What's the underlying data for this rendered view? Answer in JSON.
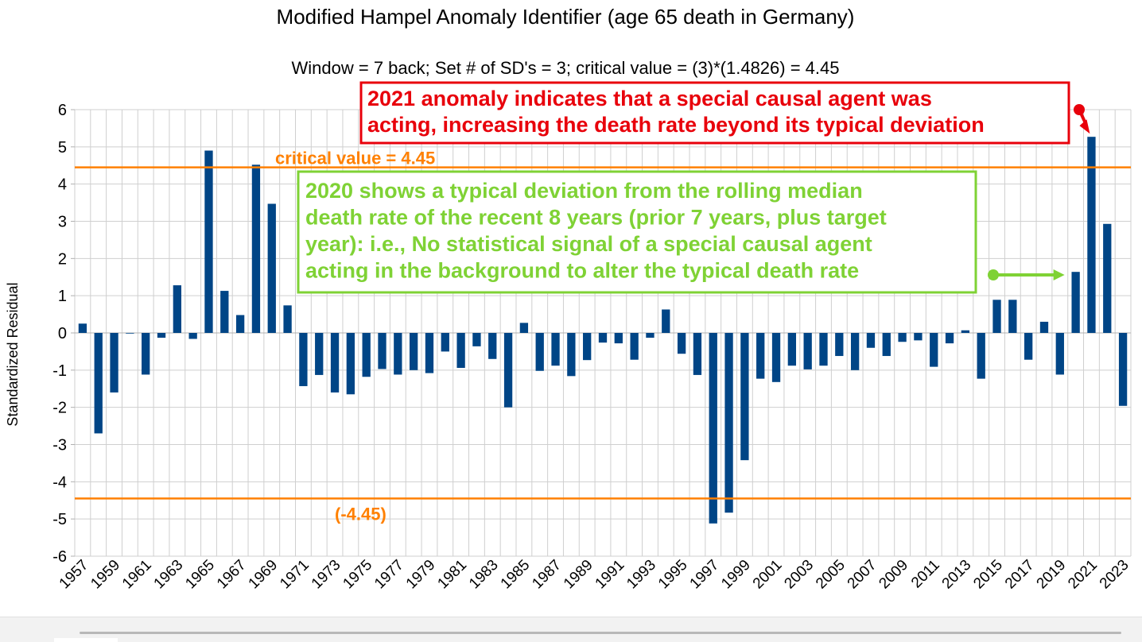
{
  "chart_data": {
    "type": "bar",
    "title": "Modified Hampel Anomaly Identifier (age 65 death in Germany)",
    "subtitle": "Window = 7 back; Set # of SD's = 3; critical value = (3)*(1.4826) = 4.45",
    "xlabel": "",
    "ylabel": "Standardized Residual",
    "ylim": [
      -6,
      6
    ],
    "yticks": [
      6,
      5,
      4,
      3,
      2,
      1,
      0,
      -1,
      -2,
      -3,
      -4,
      -5,
      -6
    ],
    "grid": true,
    "bar_color": "#004586",
    "categories": [
      "1957",
      "1958",
      "1959",
      "1960",
      "1961",
      "1962",
      "1963",
      "1964",
      "1965",
      "1966",
      "1967",
      "1968",
      "1969",
      "1970",
      "1971",
      "1972",
      "1973",
      "1974",
      "1975",
      "1976",
      "1977",
      "1978",
      "1979",
      "1980",
      "1981",
      "1982",
      "1983",
      "1984",
      "1985",
      "1986",
      "1987",
      "1988",
      "1989",
      "1990",
      "1991",
      "1992",
      "1993",
      "1994",
      "1995",
      "1996",
      "1997",
      "1998",
      "1999",
      "2000",
      "2001",
      "2002",
      "2003",
      "2004",
      "2005",
      "2006",
      "2007",
      "2008",
      "2009",
      "2010",
      "2011",
      "2012",
      "2013",
      "2014",
      "2015",
      "2016",
      "2017",
      "2018",
      "2019",
      "2020",
      "2021",
      "2022",
      "2023"
    ],
    "x_tick_labels": [
      "1957",
      "1959",
      "1961",
      "1963",
      "1965",
      "1967",
      "1969",
      "1971",
      "1973",
      "1975",
      "1977",
      "1979",
      "1981",
      "1983",
      "1985",
      "1987",
      "1989",
      "1991",
      "1993",
      "1995",
      "1997",
      "1999",
      "2001",
      "2003",
      "2005",
      "2007",
      "2009",
      "2011",
      "2013",
      "2015",
      "2017",
      "2019",
      "2021",
      "2023"
    ],
    "values": [
      0.25,
      -2.7,
      -1.6,
      0,
      -1.12,
      -0.13,
      1.28,
      -0.16,
      4.9,
      1.13,
      0.48,
      4.52,
      3.47,
      0.74,
      -1.43,
      -1.13,
      -1.6,
      -1.65,
      -1.18,
      -0.97,
      -1.12,
      -1.0,
      -1.08,
      -0.5,
      -0.94,
      -0.36,
      -0.7,
      -2.0,
      0.27,
      -1.02,
      -0.88,
      -1.16,
      -0.73,
      -0.26,
      -0.28,
      -0.72,
      -0.13,
      0.63,
      -0.56,
      -1.13,
      -5.12,
      -4.83,
      -3.42,
      -1.23,
      -1.32,
      -0.88,
      -0.98,
      -0.88,
      -0.62,
      -1.0,
      -0.4,
      -0.62,
      -0.24,
      -0.2,
      -0.91,
      -0.28,
      0.07,
      -1.23,
      0.89,
      0.89,
      -0.72,
      0.3,
      -1.12,
      1.64,
      5.27,
      2.93,
      -1.96
    ],
    "reference_lines": [
      {
        "name": "critical-upper",
        "value": 4.45,
        "label": "critical value = 4.45",
        "color": "#ff8000"
      },
      {
        "name": "critical-lower",
        "value": -4.45,
        "label": "(-4.45)",
        "color": "#ff8000"
      }
    ],
    "annotations": [
      {
        "name": "annotation-2021",
        "lines": [
          "2021 anomaly indicates that a special causal agent was",
          "acting, increasing the death rate beyond its typical deviation"
        ],
        "color": "#e8000b",
        "points_to": "2021"
      },
      {
        "name": "annotation-2020",
        "lines": [
          "2020 shows a typical deviation from the rolling median",
          "death rate of the recent 8 years (prior 7 years, plus target",
          "year): i.e., No statistical signal of a special causal agent",
          "acting in the background to alter the typical death rate"
        ],
        "color": "#7fd235",
        "points_to": "2020"
      }
    ]
  }
}
